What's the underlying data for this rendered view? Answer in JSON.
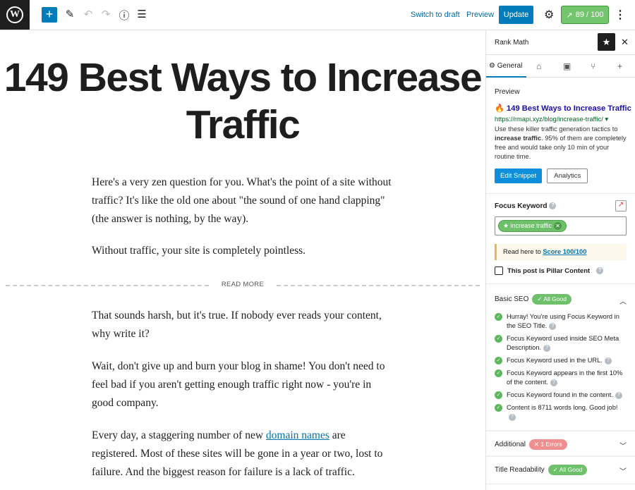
{
  "toolbar": {
    "logo": "W",
    "add": "+",
    "edit_icon": "pencil-icon",
    "switch_draft": "Switch to draft",
    "preview": "Preview",
    "update": "Update",
    "score": "89 / 100",
    "accent": "#007cba"
  },
  "editor": {
    "title": "149 Best Ways to Increase Traffic",
    "p1": "Here's a very zen question for you. What's the point of a site without traffic? It's like the old one about \"the sound of one hand clapping\" (the answer is nothing, by the way).",
    "p2": "Without traffic, your site is completely pointless.",
    "read_more": "READ MORE",
    "p3": "That sounds harsh, but it's true. If nobody ever reads your content, why write it?",
    "p4": "Wait, don't give up and burn your blog in shame! You don't need to feel bad if you aren't getting enough traffic right now - you're in good company.",
    "p5_a": "Every day, a staggering number of new ",
    "p5_link": "domain names",
    "p5_b": " are registered. Most of these sites will be gone in a year or two, lost to failure. And the biggest reason for failure is a lack of traffic."
  },
  "sidebar": {
    "title": "Rank Math",
    "tab_general": "General",
    "preview": {
      "heading": "Preview",
      "title": "🔥 149 Best Ways to Increase Traffic",
      "url": "https://rmapi.xyz/blog/increase-traffic/ ▾",
      "desc_bold": "increase traffic",
      "desc_a": "Use these killer traffic generation tactics to ",
      "desc_b": ". 95% of them are completely free and would take only 10 min of your routine time.",
      "edit": "Edit Snippet",
      "analytics": "Analytics"
    },
    "focus": {
      "label": "Focus Keyword",
      "keyword": "increase traffic",
      "note": "Read here to ",
      "note_link": "Score 100/100",
      "pillar": "This post is Pillar Content"
    },
    "basic": {
      "label": "Basic SEO",
      "badge": "✓ All Good",
      "items": [
        "Hurray! You're using Focus Keyword in the SEO Title.",
        "Focus Keyword used inside SEO Meta Description.",
        "Focus Keyword used in the URL.",
        "Focus Keyword appears in the first 10% of the content.",
        "Focus Keyword found in the content.",
        "Content is 8711 words long. Good job!"
      ]
    },
    "additional": {
      "label": "Additional",
      "badge": "✕ 1 Errors"
    },
    "title_read": {
      "label": "Title Readability",
      "badge": "✓ All Good"
    }
  }
}
